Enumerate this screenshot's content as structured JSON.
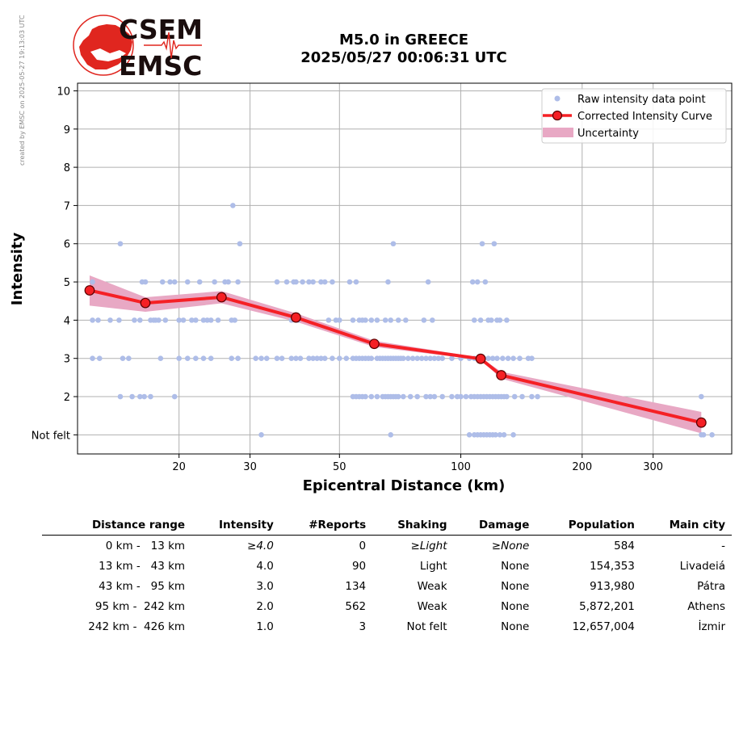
{
  "credit_text": "created by EMSC on 2025-05-27 19:13:03 UTC",
  "logo": {
    "line1": "CSEM",
    "line2": "EMSC",
    "color": "#e0261f"
  },
  "title": {
    "line1": "M5.0 in GREECE",
    "line2": "2025/05/27 00:06:31 UTC"
  },
  "colors": {
    "raw_points": "#aebde8",
    "curve": "#f52025",
    "marker_fill": "#f52025",
    "marker_edge": "#5a0000",
    "uncertainty": "#e8a8c4",
    "grid": "#b0b0b0"
  },
  "chart_data": {
    "type": "scatter",
    "xlabel": "Epicentral Distance (km)",
    "ylabel": "Intensity",
    "x_scale": "log",
    "xlim": [
      11.2,
      470
    ],
    "ylim": [
      0.5,
      10.2
    ],
    "x_ticks": [
      {
        "value": 20,
        "label": "20"
      },
      {
        "value": 30,
        "label": "30"
      },
      {
        "value": 50,
        "label": "50"
      },
      {
        "value": 100,
        "label": "100"
      },
      {
        "value": 200,
        "label": "200"
      },
      {
        "value": 300,
        "label": "300"
      }
    ],
    "y_ticks": [
      {
        "value": 1,
        "label": "Not felt"
      },
      {
        "value": 2,
        "label": "2"
      },
      {
        "value": 3,
        "label": "3"
      },
      {
        "value": 4,
        "label": "4"
      },
      {
        "value": 5,
        "label": "5"
      },
      {
        "value": 6,
        "label": "6"
      },
      {
        "value": 7,
        "label": "7"
      },
      {
        "value": 8,
        "label": "8"
      },
      {
        "value": 9,
        "label": "9"
      },
      {
        "value": 10,
        "label": "10"
      }
    ],
    "grid": true,
    "legend_position": "top-right",
    "legend": [
      {
        "label": "Raw intensity data point",
        "kind": "dot"
      },
      {
        "label": "Corrected Intensity Curve",
        "kind": "line-marker"
      },
      {
        "label": "Uncertainty",
        "kind": "band"
      }
    ],
    "series": [
      {
        "name": "Raw intensity data point",
        "kind": "scatter",
        "points": [
          [
            12.2,
            5
          ],
          [
            12.2,
            4
          ],
          [
            12.6,
            4
          ],
          [
            13.5,
            4
          ],
          [
            14.2,
            4
          ],
          [
            14.3,
            6
          ],
          [
            15.5,
            4
          ],
          [
            16,
            4
          ],
          [
            16.2,
            5
          ],
          [
            16.5,
            5
          ],
          [
            17,
            4
          ],
          [
            17.3,
            4
          ],
          [
            17.5,
            4
          ],
          [
            17.8,
            4
          ],
          [
            18.2,
            5
          ],
          [
            18.5,
            4
          ],
          [
            19,
            5
          ],
          [
            19.5,
            5
          ],
          [
            20,
            4
          ],
          [
            20.5,
            4
          ],
          [
            21,
            5
          ],
          [
            21.5,
            4
          ],
          [
            22,
            4
          ],
          [
            22.5,
            5
          ],
          [
            23,
            4
          ],
          [
            23.5,
            4
          ],
          [
            24,
            4
          ],
          [
            24.5,
            5
          ],
          [
            25,
            4
          ],
          [
            26,
            5
          ],
          [
            26.5,
            5
          ],
          [
            27,
            4
          ],
          [
            27.2,
            7
          ],
          [
            27.5,
            4
          ],
          [
            28,
            5
          ],
          [
            28.3,
            6
          ],
          [
            35,
            5
          ],
          [
            37,
            5
          ],
          [
            38,
            4
          ],
          [
            38.5,
            5
          ],
          [
            39,
            5
          ],
          [
            39.5,
            4
          ],
          [
            40.5,
            5
          ],
          [
            42,
            5
          ],
          [
            43,
            5
          ],
          [
            45,
            5
          ],
          [
            46,
            5
          ],
          [
            47,
            4
          ],
          [
            48,
            5
          ],
          [
            49,
            4
          ],
          [
            50,
            4
          ],
          [
            53,
            5
          ],
          [
            54,
            4
          ],
          [
            55,
            5
          ],
          [
            56,
            4
          ],
          [
            57,
            4
          ],
          [
            58,
            4
          ],
          [
            60,
            4
          ],
          [
            62,
            4
          ],
          [
            65,
            4
          ],
          [
            66,
            5
          ],
          [
            67,
            4
          ],
          [
            68,
            6
          ],
          [
            70,
            4
          ],
          [
            73,
            4
          ],
          [
            81,
            4
          ],
          [
            83,
            5
          ],
          [
            85,
            4
          ],
          [
            107,
            5
          ],
          [
            108,
            4
          ],
          [
            110,
            5
          ],
          [
            112,
            4
          ],
          [
            113,
            6
          ],
          [
            115,
            5
          ],
          [
            117,
            4
          ],
          [
            119,
            4
          ],
          [
            121,
            6
          ],
          [
            123,
            4
          ],
          [
            125,
            4
          ],
          [
            130,
            4
          ],
          [
            12.2,
            3
          ],
          [
            12.7,
            3
          ],
          [
            14.5,
            3
          ],
          [
            15,
            3
          ],
          [
            18,
            3
          ],
          [
            20,
            3
          ],
          [
            21,
            3
          ],
          [
            22,
            3
          ],
          [
            23,
            3
          ],
          [
            24,
            3
          ],
          [
            27,
            3
          ],
          [
            28,
            3
          ],
          [
            31,
            3
          ],
          [
            32,
            3
          ],
          [
            33,
            3
          ],
          [
            35,
            3
          ],
          [
            36,
            3
          ],
          [
            38,
            3
          ],
          [
            39,
            3
          ],
          [
            40,
            3
          ],
          [
            42,
            3
          ],
          [
            43,
            3
          ],
          [
            44,
            3
          ],
          [
            45,
            3
          ],
          [
            46,
            3
          ],
          [
            48,
            3
          ],
          [
            50,
            3
          ],
          [
            52,
            3
          ],
          [
            54,
            3
          ],
          [
            55,
            3
          ],
          [
            56,
            3
          ],
          [
            57,
            3
          ],
          [
            58,
            3
          ],
          [
            59,
            3
          ],
          [
            60,
            3
          ],
          [
            62,
            3
          ],
          [
            63,
            3
          ],
          [
            64,
            3
          ],
          [
            65,
            3
          ],
          [
            66,
            3
          ],
          [
            67,
            3
          ],
          [
            68,
            3
          ],
          [
            69,
            3
          ],
          [
            70,
            3
          ],
          [
            71,
            3
          ],
          [
            72,
            3
          ],
          [
            74,
            3
          ],
          [
            76,
            3
          ],
          [
            78,
            3
          ],
          [
            80,
            3
          ],
          [
            82,
            3
          ],
          [
            84,
            3
          ],
          [
            86,
            3
          ],
          [
            88,
            3
          ],
          [
            90,
            3
          ],
          [
            95,
            3
          ],
          [
            100,
            3
          ],
          [
            105,
            3
          ],
          [
            108,
            3
          ],
          [
            111,
            3
          ],
          [
            114,
            3
          ],
          [
            117,
            3
          ],
          [
            120,
            3
          ],
          [
            123,
            3
          ],
          [
            127,
            3
          ],
          [
            131,
            3
          ],
          [
            135,
            3
          ],
          [
            140,
            3
          ],
          [
            147,
            3
          ],
          [
            150,
            3
          ],
          [
            14.3,
            2
          ],
          [
            15.3,
            2
          ],
          [
            16,
            2
          ],
          [
            16.4,
            2
          ],
          [
            17,
            2
          ],
          [
            19.5,
            2
          ],
          [
            54,
            2
          ],
          [
            55,
            2
          ],
          [
            56,
            2
          ],
          [
            57,
            2
          ],
          [
            58,
            2
          ],
          [
            60,
            2
          ],
          [
            62,
            2
          ],
          [
            64,
            2
          ],
          [
            65,
            2
          ],
          [
            66,
            2
          ],
          [
            67,
            2
          ],
          [
            68,
            2
          ],
          [
            69,
            2
          ],
          [
            70,
            2
          ],
          [
            72,
            2
          ],
          [
            75,
            2
          ],
          [
            78,
            2
          ],
          [
            82,
            2
          ],
          [
            84,
            2
          ],
          [
            86,
            2
          ],
          [
            90,
            2
          ],
          [
            95,
            2
          ],
          [
            98,
            2
          ],
          [
            100,
            2
          ],
          [
            103,
            2
          ],
          [
            106,
            2
          ],
          [
            108,
            2
          ],
          [
            110,
            2
          ],
          [
            112,
            2
          ],
          [
            114,
            2
          ],
          [
            116,
            2
          ],
          [
            118,
            2
          ],
          [
            120,
            2
          ],
          [
            122,
            2
          ],
          [
            124,
            2
          ],
          [
            126,
            2
          ],
          [
            128,
            2
          ],
          [
            130,
            2
          ],
          [
            136,
            2
          ],
          [
            142,
            2
          ],
          [
            150,
            2
          ],
          [
            155,
            2
          ],
          [
            395,
            2
          ],
          [
            32,
            1
          ],
          [
            67,
            1
          ],
          [
            105,
            1
          ],
          [
            108,
            1
          ],
          [
            110,
            1
          ],
          [
            112,
            1
          ],
          [
            114,
            1
          ],
          [
            116,
            1
          ],
          [
            118,
            1
          ],
          [
            120,
            1
          ],
          [
            122,
            1
          ],
          [
            125,
            1
          ],
          [
            128,
            1
          ],
          [
            135,
            1
          ],
          [
            395,
            1
          ],
          [
            400,
            1
          ],
          [
            420,
            1
          ]
        ]
      },
      {
        "name": "Corrected Intensity Curve",
        "kind": "line",
        "points": [
          [
            12.0,
            4.78
          ],
          [
            16.5,
            4.45
          ],
          [
            25.5,
            4.6
          ],
          [
            39,
            4.07
          ],
          [
            61,
            3.38
          ],
          [
            112,
            2.99
          ],
          [
            126,
            2.56
          ],
          [
            395,
            1.32
          ]
        ]
      },
      {
        "name": "Uncertainty",
        "kind": "band",
        "upper": [
          [
            12.0,
            5.17
          ],
          [
            16.5,
            4.6
          ],
          [
            25.5,
            4.76
          ],
          [
            39,
            4.18
          ],
          [
            61,
            3.46
          ],
          [
            112,
            3.02
          ],
          [
            126,
            2.65
          ],
          [
            395,
            1.6
          ]
        ],
        "lower": [
          [
            12.0,
            4.38
          ],
          [
            16.5,
            4.22
          ],
          [
            25.5,
            4.44
          ],
          [
            39,
            3.96
          ],
          [
            61,
            3.3
          ],
          [
            112,
            2.96
          ],
          [
            126,
            2.47
          ],
          [
            395,
            1.04
          ]
        ]
      }
    ]
  },
  "table": {
    "columns": [
      "Distance range",
      "Intensity",
      "#Reports",
      "Shaking",
      "Damage",
      "Population",
      "Main city"
    ],
    "rows": [
      {
        "cells": [
          "0 km -   13 km",
          "≥4.0",
          "0",
          "≥Light",
          "≥None",
          "584",
          "-"
        ],
        "italic": [
          1,
          3,
          4
        ]
      },
      {
        "cells": [
          "13 km -   43 km",
          "4.0",
          "90",
          "Light",
          "None",
          "154,353",
          "Livadeiá"
        ],
        "italic": []
      },
      {
        "cells": [
          "43 km -   95 km",
          "3.0",
          "134",
          "Weak",
          "None",
          "913,980",
          "Pátra"
        ],
        "italic": []
      },
      {
        "cells": [
          "95 km -  242 km",
          "2.0",
          "562",
          "Weak",
          "None",
          "5,872,201",
          "Athens"
        ],
        "italic": []
      },
      {
        "cells": [
          "242 km -  426 km",
          "1.0",
          "3",
          "Not felt",
          "None",
          "12,657,004",
          "İzmir"
        ],
        "italic": []
      }
    ]
  }
}
